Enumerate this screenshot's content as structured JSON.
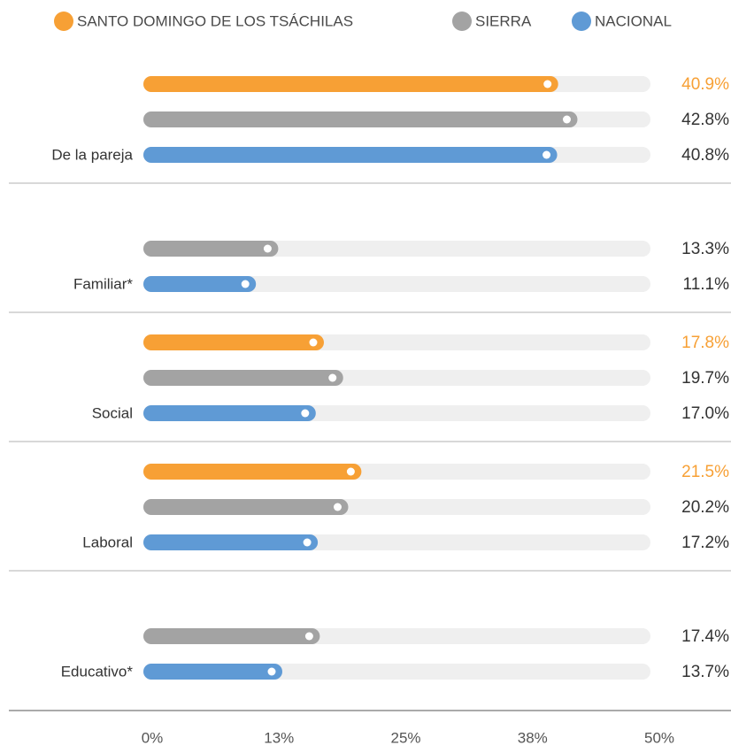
{
  "chart_data": {
    "type": "bar",
    "orientation": "horizontal",
    "categories": [
      "De la pareja",
      "Familiar*",
      "Social",
      "Laboral",
      "Educativo*"
    ],
    "series": [
      {
        "name": "SANTO DOMINGO DE LOS TSÁCHILAS",
        "color": "#f7a035",
        "values": [
          40.9,
          null,
          17.8,
          21.5,
          null
        ],
        "value_labels": [
          "40.9%",
          null,
          "17.8%",
          "21.5%",
          null
        ]
      },
      {
        "name": "SIERRA",
        "color": "#a3a3a3",
        "values": [
          42.8,
          13.3,
          19.7,
          20.2,
          17.4
        ],
        "value_labels": [
          "42.8%",
          "13.3%",
          "19.7%",
          "20.2%",
          "17.4%"
        ]
      },
      {
        "name": "NACIONAL",
        "color": "#5f9ad5",
        "values": [
          40.8,
          11.1,
          17.0,
          17.2,
          13.7
        ],
        "value_labels": [
          "40.8%",
          "11.1%",
          "17.0%",
          "17.2%",
          "13.7%"
        ]
      }
    ],
    "xlim": [
      0,
      50
    ],
    "xticks": [
      {
        "value": 0,
        "label": "0%"
      },
      {
        "value": 12.5,
        "label": "13%"
      },
      {
        "value": 25,
        "label": "25%"
      },
      {
        "value": 37.5,
        "label": "38%"
      },
      {
        "value": 50,
        "label": "50%"
      }
    ],
    "legend": "top"
  }
}
